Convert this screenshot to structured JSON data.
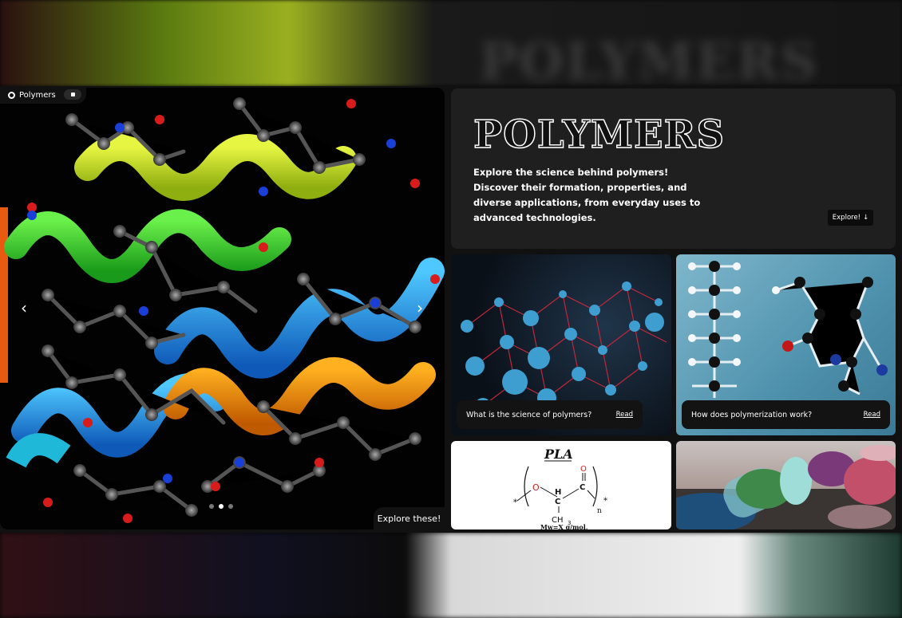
{
  "background": {
    "blurred_word": "POLYMERS"
  },
  "hero": {
    "tag_label": "Polymers",
    "prev_icon": "chevron-left-icon",
    "next_icon": "chevron-right-icon",
    "slides": {
      "count": 3,
      "active": 2
    },
    "explore_label": "Explore these!"
  },
  "info": {
    "title": "POLYMERS",
    "description": "Explore the science behind polymers! Discover their formation, properties, and diverse applications, from everyday uses to advanced technologies.",
    "button_label": "Explore!",
    "button_icon": "↓"
  },
  "tiles": [
    {
      "caption": "What is the science of polymers?",
      "link": "Read"
    },
    {
      "caption": "How does polymerization work?",
      "link": "Read"
    }
  ],
  "pla": {
    "title": "PLA",
    "atoms": {
      "o1": "O",
      "h": "H",
      "c1": "C",
      "c2": "C",
      "o2": "O",
      "ch3": "CH",
      "sub3": "3",
      "n": "n",
      "star": "*"
    },
    "mw": "Mw=X g/mol,"
  },
  "colors": {
    "accent_dark": "#1f1f1f",
    "frame": "#111111",
    "red_oxygen": "#d81b1b"
  }
}
